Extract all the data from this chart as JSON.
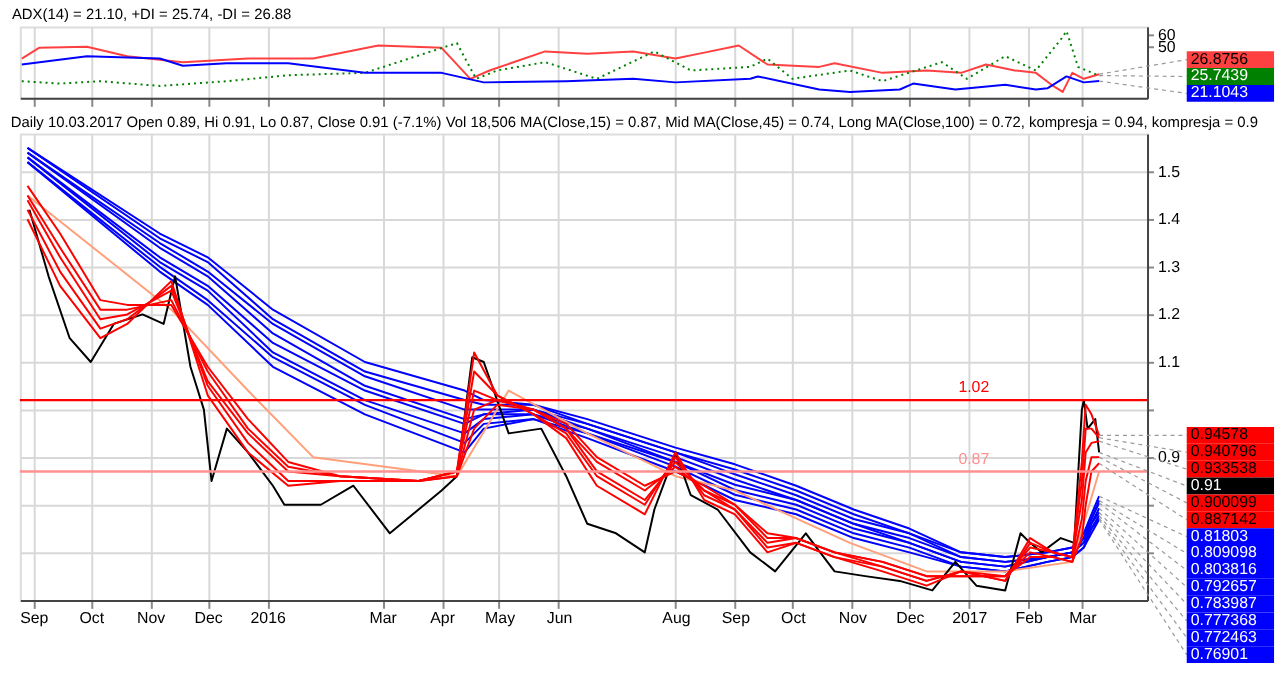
{
  "chart_data": [
    {
      "type": "line",
      "title": "ADX(14) = 21.10, +DI = 25.74, -DI = 26.88",
      "xlim": [
        "2015-08-25",
        "2017-04-04"
      ],
      "ylim": [
        7,
        67
      ],
      "yticks": [
        50,
        60
      ],
      "grid": "x",
      "tick_labels": "y",
      "xticks": [
        {
          "value": "2015-09-01",
          "label": null
        },
        {
          "value": "2015-10-01",
          "label": null
        },
        {
          "value": "2015-11-01",
          "label": null
        },
        {
          "value": "2015-12-01",
          "label": null
        },
        {
          "value": "2016-01-01",
          "label": null
        },
        {
          "value": "2016-03-01",
          "label": null
        },
        {
          "value": "2016-04-01",
          "label": null
        },
        {
          "value": "2016-05-01",
          "label": null
        },
        {
          "value": "2016-06-01",
          "label": null
        },
        {
          "value": "2016-08-01",
          "label": null
        },
        {
          "value": "2016-09-01",
          "label": null
        },
        {
          "value": "2016-10-01",
          "label": null
        },
        {
          "value": "2016-11-01",
          "label": null
        },
        {
          "value": "2016-12-01",
          "label": null
        },
        {
          "value": "2017-01-01",
          "label": null
        },
        {
          "value": "2017-02-01",
          "label": null
        },
        {
          "value": "2017-03-01",
          "label": null
        }
      ],
      "series": [
        {
          "color": "#ff4040",
          "line_style": "solid",
          "x": [
            "2015-08-26",
            "2015-09-04",
            "2015-09-29",
            "2015-10-20",
            "2015-11-18",
            "2015-12-22",
            "2016-01-25",
            "2016-02-28",
            "2016-04-01",
            "2016-04-16",
            "2016-04-26",
            "2016-05-25",
            "2016-06-16",
            "2016-07-10",
            "2016-08-01",
            "2016-08-16",
            "2016-09-03",
            "2016-09-18",
            "2016-10-15",
            "2016-10-23",
            "2016-11-17",
            "2016-12-10",
            "2016-12-28",
            "2017-01-10",
            "2017-01-25",
            "2017-02-05",
            "2017-02-14",
            "2017-02-19",
            "2017-02-24",
            "2017-03-02",
            "2017-03-10"
          ],
          "values": [
            40,
            49,
            50,
            42,
            37,
            40,
            40,
            51,
            49,
            23,
            30,
            46,
            44,
            46,
            40,
            45,
            51,
            35,
            33,
            36,
            28,
            30,
            28,
            35,
            30,
            28,
            17,
            12,
            28,
            23,
            26.8756
          ]
        },
        {
          "color": "#008000",
          "line_style": "dotted",
          "x": [
            "2015-08-26",
            "2015-09-15",
            "2015-10-06",
            "2015-11-06",
            "2015-12-11",
            "2016-01-12",
            "2016-02-21",
            "2016-04-09",
            "2016-04-19",
            "2016-04-30",
            "2016-05-25",
            "2016-06-21",
            "2016-07-21",
            "2016-08-09",
            "2016-09-09",
            "2016-09-18",
            "2016-10-01",
            "2016-10-31",
            "2016-11-17",
            "2016-12-18",
            "2016-12-31",
            "2017-01-20",
            "2017-02-05",
            "2017-02-18",
            "2017-02-21",
            "2017-02-27",
            "2017-03-10"
          ],
          "values": [
            21,
            19,
            21,
            17,
            21,
            26,
            28,
            53,
            23,
            30,
            37,
            23,
            46,
            30,
            33,
            40,
            23,
            30,
            21,
            37,
            23,
            42,
            30,
            56,
            63,
            33,
            25.7439
          ]
        },
        {
          "color": "#0000ff",
          "line_style": "solid",
          "x": [
            "2015-08-26",
            "2015-09-29",
            "2015-11-06",
            "2015-11-18",
            "2015-12-11",
            "2016-01-12",
            "2016-02-21",
            "2016-04-01",
            "2016-04-23",
            "2016-06-05",
            "2016-07-10",
            "2016-08-01",
            "2016-09-09",
            "2016-09-13",
            "2016-10-15",
            "2016-10-31",
            "2016-11-26",
            "2016-12-03",
            "2016-12-25",
            "2017-01-20",
            "2017-02-05",
            "2017-02-11",
            "2017-02-21",
            "2017-03-02",
            "2017-03-10"
          ],
          "values": [
            35,
            42,
            40,
            34,
            36,
            36,
            28,
            28,
            20,
            21,
            23,
            20,
            23,
            25,
            14,
            12,
            14,
            19,
            14,
            18,
            14,
            15,
            25,
            20,
            21.1043
          ]
        }
      ],
      "annotations": [
        {
          "text": "26.8756",
          "x": "2017-03-10",
          "y": 26.8756
        },
        {
          "text": "25.7439",
          "x": "2017-03-10",
          "y": 25.7439
        },
        {
          "text": "21.1043",
          "x": "2017-03-10",
          "y": 21.1043
        }
      ]
    },
    {
      "type": "line",
      "title": "Daily 10.03.2017 Open 0.89, Hi 0.91, Lo 0.87, Close 0.91 (-7.1%) Vol 18,506 MA(Close,15) = 0.87, Mid MA(Close,45) = 0.74, Long MA(Close,100) = 0.72, kompresja = 0.94, kompresja = 0.9",
      "xlim": [
        "2015-08-25",
        "2017-04-04"
      ],
      "ylim": [
        0.6,
        1.58
      ],
      "grid": true,
      "yticks": [
        {
          "value": 0.7,
          "label": null
        },
        {
          "value": 0.8,
          "label": null
        },
        0.9,
        {
          "value": 1.0,
          "label": null
        },
        1.1,
        1.2,
        1.3,
        1.4,
        1.5
      ],
      "xticks": [
        {
          "value": "2015-09-01",
          "label": "Sep"
        },
        {
          "value": "2015-10-01",
          "label": "Oct"
        },
        {
          "value": "2015-11-01",
          "label": "Nov"
        },
        {
          "value": "2015-12-01",
          "label": "Dec"
        },
        {
          "value": "2016-01-01",
          "label": "2016"
        },
        {
          "value": "2016-03-01",
          "label": "Mar"
        },
        {
          "value": "2016-04-01",
          "label": "Apr"
        },
        {
          "value": "2016-05-01",
          "label": "May"
        },
        {
          "value": "2016-06-01",
          "label": "Jun"
        },
        {
          "value": "2016-08-01",
          "label": "Aug"
        },
        {
          "value": "2016-09-01",
          "label": "Sep"
        },
        {
          "value": "2016-10-01",
          "label": "Oct"
        },
        {
          "value": "2016-11-01",
          "label": "Nov"
        },
        {
          "value": "2016-12-01",
          "label": "Dec"
        },
        {
          "value": "2017-01-01",
          "label": "2017"
        },
        {
          "value": "2017-02-01",
          "label": "Feb"
        },
        {
          "value": "2017-03-01",
          "label": "Mar"
        }
      ],
      "series": [
        {
          "color": "#0000ff",
          "x": [
            "2015-08-29",
            "2015-11-06",
            "2015-12-01",
            "2016-01-04",
            "2016-02-21",
            "2016-04-13",
            "2016-04-23",
            "2016-05-19",
            "2016-06-16",
            "2016-08-01",
            "2016-09-01",
            "2016-10-03",
            "2016-11-02",
            "2016-12-01",
            "2016-12-28",
            "2017-01-20",
            "2017-02-11",
            "2017-02-24",
            "2017-03-02",
            "2017-03-06",
            "2017-03-10"
          ],
          "values": [
            1.55,
            1.37,
            1.32,
            1.21,
            1.1,
            1.04,
            1.02,
            1.01,
            0.98,
            0.92,
            0.885,
            0.84,
            0.79,
            0.75,
            0.7,
            0.69,
            0.7,
            0.71,
            0.74,
            0.78,
            0.81803
          ]
        },
        {
          "color": "#0000ff",
          "x": [
            "2015-08-29",
            "2015-11-06",
            "2015-12-01",
            "2016-01-04",
            "2016-02-21",
            "2016-04-13",
            "2016-04-23",
            "2016-05-19",
            "2016-06-16",
            "2016-08-01",
            "2016-09-01",
            "2016-10-03",
            "2016-11-02",
            "2016-12-01",
            "2016-12-28",
            "2017-01-20",
            "2017-02-11",
            "2017-02-24",
            "2017-03-02",
            "2017-03-06",
            "2017-03-10"
          ],
          "values": [
            1.55,
            1.36,
            1.31,
            1.19,
            1.08,
            1.02,
            1.01,
            1.01,
            0.97,
            0.91,
            0.874,
            0.83,
            0.78,
            0.74,
            0.7,
            0.69,
            0.7,
            0.71,
            0.74,
            0.77,
            0.809098
          ]
        },
        {
          "color": "#0000ff",
          "x": [
            "2015-08-29",
            "2015-11-06",
            "2015-12-01",
            "2016-01-04",
            "2016-02-21",
            "2016-04-13",
            "2016-04-23",
            "2016-05-19",
            "2016-06-16",
            "2016-08-01",
            "2016-09-01",
            "2016-10-03",
            "2016-11-02",
            "2016-12-01",
            "2016-12-28",
            "2017-01-20",
            "2017-02-11",
            "2017-02-24",
            "2017-03-02",
            "2017-03-06",
            "2017-03-10"
          ],
          "values": [
            1.54,
            1.35,
            1.29,
            1.18,
            1.07,
            1.0,
            1.0,
            1.0,
            0.97,
            0.91,
            0.864,
            0.82,
            0.77,
            0.74,
            0.69,
            0.68,
            0.69,
            0.7,
            0.73,
            0.77,
            0.803816
          ]
        },
        {
          "color": "#0000ff",
          "x": [
            "2015-08-29",
            "2015-11-06",
            "2015-12-01",
            "2016-01-04",
            "2016-02-21",
            "2016-04-13",
            "2016-04-23",
            "2016-05-19",
            "2016-06-16",
            "2016-08-01",
            "2016-09-01",
            "2016-10-03",
            "2016-11-02",
            "2016-12-01",
            "2016-12-28",
            "2017-01-20",
            "2017-02-11",
            "2017-02-24",
            "2017-03-02",
            "2017-03-06",
            "2017-03-10"
          ],
          "values": [
            1.54,
            1.34,
            1.28,
            1.16,
            1.05,
            0.98,
            0.99,
            1.0,
            0.96,
            0.9,
            0.853,
            0.81,
            0.76,
            0.73,
            0.69,
            0.68,
            0.69,
            0.7,
            0.73,
            0.76,
            0.792657
          ]
        },
        {
          "color": "#0000ff",
          "x": [
            "2015-08-29",
            "2015-11-06",
            "2015-12-01",
            "2016-01-04",
            "2016-02-21",
            "2016-04-13",
            "2016-04-23",
            "2016-05-19",
            "2016-06-16",
            "2016-08-01",
            "2016-09-01",
            "2016-10-03",
            "2016-11-02",
            "2016-12-01",
            "2016-12-28",
            "2017-01-20",
            "2017-02-11",
            "2017-02-24",
            "2017-03-02",
            "2017-03-06",
            "2017-03-10"
          ],
          "values": [
            1.53,
            1.32,
            1.26,
            1.14,
            1.04,
            0.97,
            0.99,
            0.99,
            0.96,
            0.89,
            0.842,
            0.81,
            0.76,
            0.72,
            0.68,
            0.67,
            0.69,
            0.7,
            0.72,
            0.76,
            0.783987
          ]
        },
        {
          "color": "#0000ff",
          "x": [
            "2015-08-29",
            "2015-11-06",
            "2015-12-01",
            "2016-01-04",
            "2016-02-21",
            "2016-04-13",
            "2016-04-23",
            "2016-05-19",
            "2016-06-16",
            "2016-08-01",
            "2016-09-01",
            "2016-10-03",
            "2016-11-02",
            "2016-12-01",
            "2016-12-28",
            "2017-01-20",
            "2017-02-11",
            "2017-02-24",
            "2017-03-02",
            "2017-03-06",
            "2017-03-10"
          ],
          "values": [
            1.53,
            1.31,
            1.25,
            1.12,
            1.02,
            0.95,
            0.98,
            0.99,
            0.95,
            0.89,
            0.831,
            0.8,
            0.75,
            0.72,
            0.68,
            0.67,
            0.69,
            0.7,
            0.72,
            0.75,
            0.777368
          ]
        },
        {
          "color": "#0000ff",
          "x": [
            "2015-08-29",
            "2015-11-06",
            "2015-12-01",
            "2016-01-04",
            "2016-02-21",
            "2016-04-13",
            "2016-04-23",
            "2016-05-19",
            "2016-06-16",
            "2016-08-01",
            "2016-09-01",
            "2016-10-03",
            "2016-11-02",
            "2016-12-01",
            "2016-12-28",
            "2017-01-20",
            "2017-02-11",
            "2017-02-24",
            "2017-03-02",
            "2017-03-06",
            "2017-03-10"
          ],
          "values": [
            1.52,
            1.3,
            1.23,
            1.11,
            1.01,
            0.93,
            0.97,
            0.98,
            0.95,
            0.88,
            0.821,
            0.79,
            0.74,
            0.71,
            0.67,
            0.66,
            0.68,
            0.69,
            0.71,
            0.75,
            0.772463
          ]
        },
        {
          "color": "#0000ff",
          "x": [
            "2015-08-29",
            "2015-11-06",
            "2015-12-01",
            "2016-01-04",
            "2016-02-21",
            "2016-04-13",
            "2016-04-23",
            "2016-05-19",
            "2016-06-16",
            "2016-08-01",
            "2016-09-01",
            "2016-10-03",
            "2016-11-02",
            "2016-12-01",
            "2016-12-28",
            "2017-01-20",
            "2017-02-11",
            "2017-02-24",
            "2017-03-02",
            "2017-03-06",
            "2017-03-10"
          ],
          "values": [
            1.52,
            1.29,
            1.22,
            1.09,
            0.99,
            0.91,
            0.96,
            0.98,
            0.94,
            0.87,
            0.81,
            0.78,
            0.73,
            0.7,
            0.67,
            0.66,
            0.68,
            0.69,
            0.71,
            0.74,
            0.76901
          ]
        },
        {
          "color": "#ffa07a",
          "x": [
            "2015-08-29",
            "2015-11-12",
            "2015-12-22",
            "2016-01-25",
            "2016-04-09",
            "2016-05-06",
            "2016-06-16",
            "2016-08-01",
            "2016-09-01",
            "2016-10-31",
            "2016-12-10",
            "2017-01-20",
            "2017-02-24",
            "2017-03-10"
          ],
          "values": [
            1.45,
            1.21,
            1.04,
            0.9,
            0.86,
            1.04,
            0.95,
            0.86,
            0.83,
            0.72,
            0.66,
            0.66,
            0.68,
            0.87
          ]
        },
        {
          "color": "#000000",
          "x": [
            "2015-08-30",
            "2015-09-09",
            "2015-09-20",
            "2015-10-01",
            "2015-10-13",
            "2015-10-28",
            "2015-11-08",
            "2015-11-14",
            "2015-11-22",
            "2015-11-29",
            "2015-12-03",
            "2015-12-11",
            "2015-12-22",
            "2016-01-04",
            "2016-01-10",
            "2016-01-29",
            "2016-02-15",
            "2016-03-05",
            "2016-04-01",
            "2016-04-09",
            "2016-04-17",
            "2016-04-23",
            "2016-05-06",
            "2016-05-23",
            "2016-06-05",
            "2016-06-16",
            "2016-07-01",
            "2016-07-16",
            "2016-07-21",
            "2016-08-01",
            "2016-08-09",
            "2016-08-23",
            "2016-09-09",
            "2016-09-22",
            "2016-10-08",
            "2016-10-23",
            "2016-11-08",
            "2016-11-26",
            "2016-12-13",
            "2016-12-25",
            "2017-01-05",
            "2017-01-20",
            "2017-01-28",
            "2017-02-02",
            "2017-02-08",
            "2017-02-18",
            "2017-02-25",
            "2017-03-01",
            "2017-03-02",
            "2017-03-04",
            "2017-03-08",
            "2017-03-10"
          ],
          "values": [
            1.42,
            1.28,
            1.15,
            1.1,
            1.18,
            1.2,
            1.18,
            1.28,
            1.09,
            1.0,
            0.85,
            0.96,
            0.91,
            0.84,
            0.8,
            0.8,
            0.84,
            0.74,
            0.83,
            0.86,
            1.11,
            1.1,
            0.95,
            0.96,
            0.86,
            0.76,
            0.74,
            0.7,
            0.79,
            0.91,
            0.82,
            0.79,
            0.7,
            0.66,
            0.74,
            0.66,
            0.65,
            0.64,
            0.62,
            0.68,
            0.63,
            0.62,
            0.74,
            0.72,
            0.7,
            0.73,
            0.72,
            1.0,
            1.02,
            0.96,
            0.98,
            0.91
          ]
        },
        {
          "color": "#ff0000",
          "x": [
            "2015-08-29",
            "2015-09-15",
            "2015-10-06",
            "2015-10-20",
            "2015-11-12",
            "2015-12-01",
            "2015-12-22",
            "2016-01-12",
            "2016-02-08",
            "2016-03-20",
            "2016-04-09",
            "2016-04-18",
            "2016-04-30",
            "2016-05-19",
            "2016-06-05",
            "2016-06-21",
            "2016-07-16",
            "2016-08-01",
            "2016-08-16",
            "2016-09-01",
            "2016-09-18",
            "2016-10-03",
            "2016-10-23",
            "2016-11-17",
            "2016-12-10",
            "2016-12-28",
            "2017-01-20",
            "2017-02-02",
            "2017-02-14",
            "2017-02-24",
            "2017-03-01",
            "2017-03-03",
            "2017-03-06",
            "2017-03-10"
          ],
          "values": [
            1.4,
            1.26,
            1.15,
            1.18,
            1.27,
            1.03,
            0.91,
            0.84,
            0.85,
            0.85,
            0.87,
            1.12,
            1.03,
            0.99,
            0.94,
            0.84,
            0.78,
            0.91,
            0.81,
            0.78,
            0.7,
            0.72,
            0.69,
            0.66,
            0.63,
            0.66,
            0.64,
            0.73,
            0.7,
            0.69,
            0.89,
            1.01,
            0.99,
            0.94578
          ]
        },
        {
          "color": "#ff0000",
          "x": [
            "2015-08-29",
            "2015-09-15",
            "2015-10-06",
            "2015-10-20",
            "2015-11-12",
            "2015-12-01",
            "2015-12-22",
            "2016-01-12",
            "2016-02-08",
            "2016-03-20",
            "2016-04-09",
            "2016-04-18",
            "2016-04-30",
            "2016-05-19",
            "2016-06-05",
            "2016-06-21",
            "2016-07-16",
            "2016-08-01",
            "2016-08-16",
            "2016-09-01",
            "2016-09-18",
            "2016-10-03",
            "2016-10-23",
            "2016-11-17",
            "2016-12-10",
            "2016-12-28",
            "2017-01-20",
            "2017-02-02",
            "2017-02-14",
            "2017-02-24",
            "2017-03-01",
            "2017-03-03",
            "2017-03-06",
            "2017-03-10"
          ],
          "values": [
            1.42,
            1.29,
            1.17,
            1.19,
            1.26,
            1.05,
            0.93,
            0.85,
            0.85,
            0.85,
            0.87,
            1.08,
            1.03,
            0.99,
            0.95,
            0.86,
            0.8,
            0.9,
            0.82,
            0.79,
            0.71,
            0.72,
            0.69,
            0.67,
            0.64,
            0.66,
            0.64,
            0.72,
            0.7,
            0.69,
            0.85,
            0.96,
            0.96,
            0.940796
          ]
        },
        {
          "color": "#ff0000",
          "x": [
            "2015-08-29",
            "2015-09-15",
            "2015-10-06",
            "2015-10-20",
            "2015-11-12",
            "2015-12-01",
            "2015-12-22",
            "2016-01-12",
            "2016-02-08",
            "2016-03-20",
            "2016-04-09",
            "2016-04-18",
            "2016-04-30",
            "2016-05-19",
            "2016-06-05",
            "2016-06-21",
            "2016-07-16",
            "2016-08-01",
            "2016-08-16",
            "2016-09-01",
            "2016-09-18",
            "2016-10-03",
            "2016-10-23",
            "2016-11-17",
            "2016-12-10",
            "2016-12-28",
            "2017-01-20",
            "2017-02-02",
            "2017-02-14",
            "2017-02-24",
            "2017-03-01",
            "2017-03-03",
            "2017-03-06",
            "2017-03-10"
          ],
          "values": [
            1.44,
            1.32,
            1.19,
            1.2,
            1.25,
            1.06,
            0.95,
            0.87,
            0.86,
            0.85,
            0.87,
            1.04,
            1.02,
            1.0,
            0.96,
            0.87,
            0.81,
            0.89,
            0.83,
            0.79,
            0.72,
            0.73,
            0.7,
            0.67,
            0.64,
            0.66,
            0.65,
            0.71,
            0.7,
            0.69,
            0.81,
            0.91,
            0.93,
            0.933538
          ]
        },
        {
          "color": "#ff0000",
          "x": [
            "2015-08-29",
            "2015-09-15",
            "2015-10-06",
            "2015-10-20",
            "2015-11-12",
            "2015-12-01",
            "2015-12-22",
            "2016-01-12",
            "2016-02-08",
            "2016-03-20",
            "2016-04-09",
            "2016-04-18",
            "2016-04-30",
            "2016-05-19",
            "2016-06-05",
            "2016-06-21",
            "2016-07-16",
            "2016-08-01",
            "2016-08-16",
            "2016-09-01",
            "2016-09-18",
            "2016-10-03",
            "2016-10-23",
            "2016-11-17",
            "2016-12-10",
            "2016-12-28",
            "2017-01-20",
            "2017-02-02",
            "2017-02-14",
            "2017-02-24",
            "2017-03-01",
            "2017-03-03",
            "2017-03-06",
            "2017-03-10"
          ],
          "values": [
            1.45,
            1.34,
            1.21,
            1.21,
            1.23,
            1.08,
            0.96,
            0.88,
            0.86,
            0.85,
            0.86,
            1.0,
            1.02,
            1.0,
            0.96,
            0.89,
            0.83,
            0.88,
            0.83,
            0.8,
            0.73,
            0.73,
            0.7,
            0.68,
            0.65,
            0.65,
            0.65,
            0.7,
            0.69,
            0.68,
            0.77,
            0.85,
            0.9,
            0.900099
          ]
        },
        {
          "color": "#ff0000",
          "x": [
            "2015-08-29",
            "2015-09-15",
            "2015-10-06",
            "2015-10-20",
            "2015-11-12",
            "2015-12-01",
            "2015-12-22",
            "2016-01-12",
            "2016-02-08",
            "2016-03-20",
            "2016-04-09",
            "2016-04-18",
            "2016-04-30",
            "2016-05-19",
            "2016-06-05",
            "2016-06-21",
            "2016-07-16",
            "2016-08-01",
            "2016-08-16",
            "2016-09-01",
            "2016-09-18",
            "2016-10-03",
            "2016-10-23",
            "2016-11-17",
            "2016-12-10",
            "2016-12-28",
            "2017-01-20",
            "2017-02-02",
            "2017-02-14",
            "2017-02-24",
            "2017-03-01",
            "2017-03-03",
            "2017-03-06",
            "2017-03-10"
          ],
          "values": [
            1.47,
            1.37,
            1.23,
            1.22,
            1.22,
            1.09,
            0.98,
            0.89,
            0.86,
            0.85,
            0.86,
            0.96,
            1.01,
            1.0,
            0.97,
            0.9,
            0.84,
            0.87,
            0.84,
            0.8,
            0.74,
            0.73,
            0.7,
            0.68,
            0.65,
            0.65,
            0.65,
            0.69,
            0.69,
            0.68,
            0.73,
            0.8,
            0.87,
            0.887142
          ]
        }
      ],
      "ref_lines": [
        {
          "axis": "y",
          "value": 1.02,
          "label": "1.02",
          "color": "#ff0000"
        },
        {
          "axis": "y",
          "value": 0.87,
          "label": "0.87",
          "color": "#ff9090"
        }
      ],
      "annotations": [
        {
          "text": "0.94578",
          "x": "2017-03-10",
          "y": 0.94578
        },
        {
          "text": "0.940796",
          "x": "2017-03-10",
          "y": 0.940796
        },
        {
          "text": "0.933538",
          "x": "2017-03-10",
          "y": 0.933538
        },
        {
          "text": "0.91",
          "x": "2017-03-10",
          "y": 0.91
        },
        {
          "text": "0.900099",
          "x": "2017-03-10",
          "y": 0.900099
        },
        {
          "text": "0.887142",
          "x": "2017-03-10",
          "y": 0.887142
        },
        {
          "text": "0.81803",
          "x": "2017-03-10",
          "y": 0.81803
        },
        {
          "text": "0.809098",
          "x": "2017-03-10",
          "y": 0.809098
        },
        {
          "text": "0.803816",
          "x": "2017-03-10",
          "y": 0.803816
        },
        {
          "text": "0.792657",
          "x": "2017-03-10",
          "y": 0.792657
        },
        {
          "text": "0.783987",
          "x": "2017-03-10",
          "y": 0.783987
        },
        {
          "text": "0.777368",
          "x": "2017-03-10",
          "y": 0.777368
        },
        {
          "text": "0.772463",
          "x": "2017-03-10",
          "y": 0.772463
        },
        {
          "text": "0.76901",
          "x": "2017-03-10",
          "y": 0.76901
        }
      ]
    }
  ]
}
